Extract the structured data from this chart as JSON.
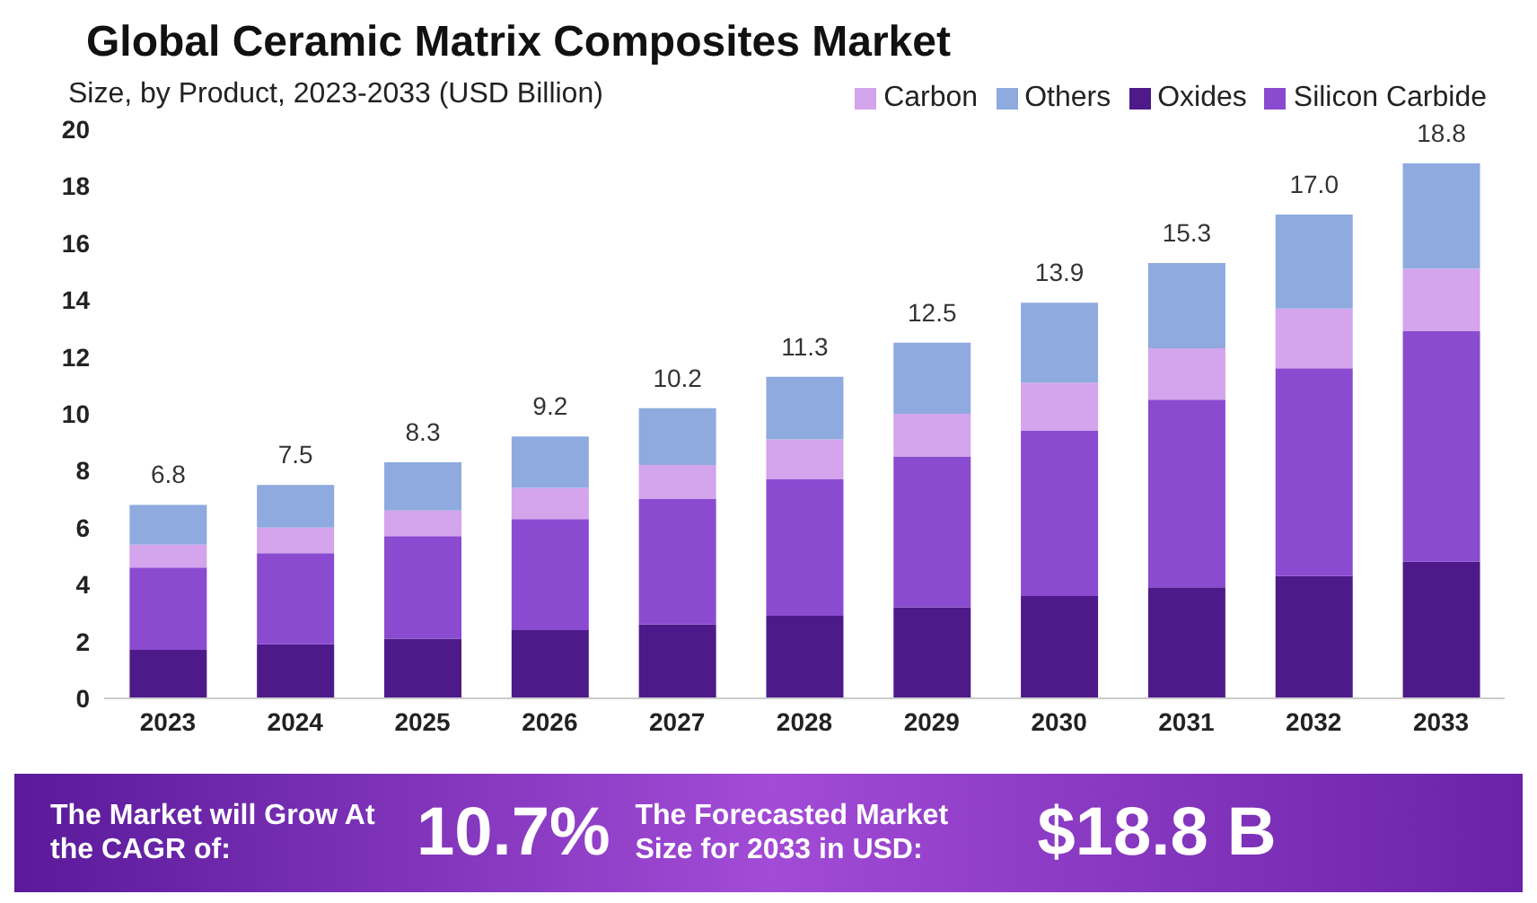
{
  "chart_data": {
    "type": "bar",
    "title": "Global Ceramic Matrix Composites Market",
    "subtitle": "Size, by Product, 2023-2033 (USD Billion)",
    "categories": [
      "2023",
      "2024",
      "2025",
      "2026",
      "2027",
      "2028",
      "2029",
      "2030",
      "2031",
      "2032",
      "2033"
    ],
    "stacked": true,
    "series": [
      {
        "name": "Oxides",
        "color": "#4e1a8a",
        "values": [
          1.7,
          1.9,
          2.1,
          2.4,
          2.6,
          2.9,
          3.2,
          3.6,
          3.9,
          4.3,
          4.8
        ]
      },
      {
        "name": "Silicon Carbide",
        "color": "#8a4bd0",
        "values": [
          2.9,
          3.2,
          3.6,
          3.9,
          4.4,
          4.8,
          5.3,
          5.8,
          6.6,
          7.3,
          8.1
        ]
      },
      {
        "name": "Carbon",
        "color": "#d4a4ec",
        "values": [
          0.8,
          0.9,
          0.9,
          1.1,
          1.2,
          1.4,
          1.5,
          1.7,
          1.8,
          2.1,
          2.2
        ]
      },
      {
        "name": "Others",
        "color": "#8eaadf",
        "values": [
          1.4,
          1.5,
          1.7,
          1.8,
          2.0,
          2.2,
          2.5,
          2.8,
          3.0,
          3.3,
          3.7
        ]
      }
    ],
    "totals": [
      "6.8",
      "7.5",
      "8.3",
      "9.2",
      "10.2",
      "11.3",
      "12.5",
      "13.9",
      "15.3",
      "17.0",
      "18.8"
    ],
    "ylim": [
      0,
      20
    ],
    "yticks": [
      0,
      2,
      4,
      6,
      8,
      10,
      12,
      14,
      16,
      18,
      20
    ],
    "grid": false,
    "legend": "top right",
    "annotations": [
      "The Market will Grow At the CAGR of:",
      "10.7%",
      "The Forecasted Market Size for 2033 in USD:",
      "$18.8 B"
    ]
  }
}
